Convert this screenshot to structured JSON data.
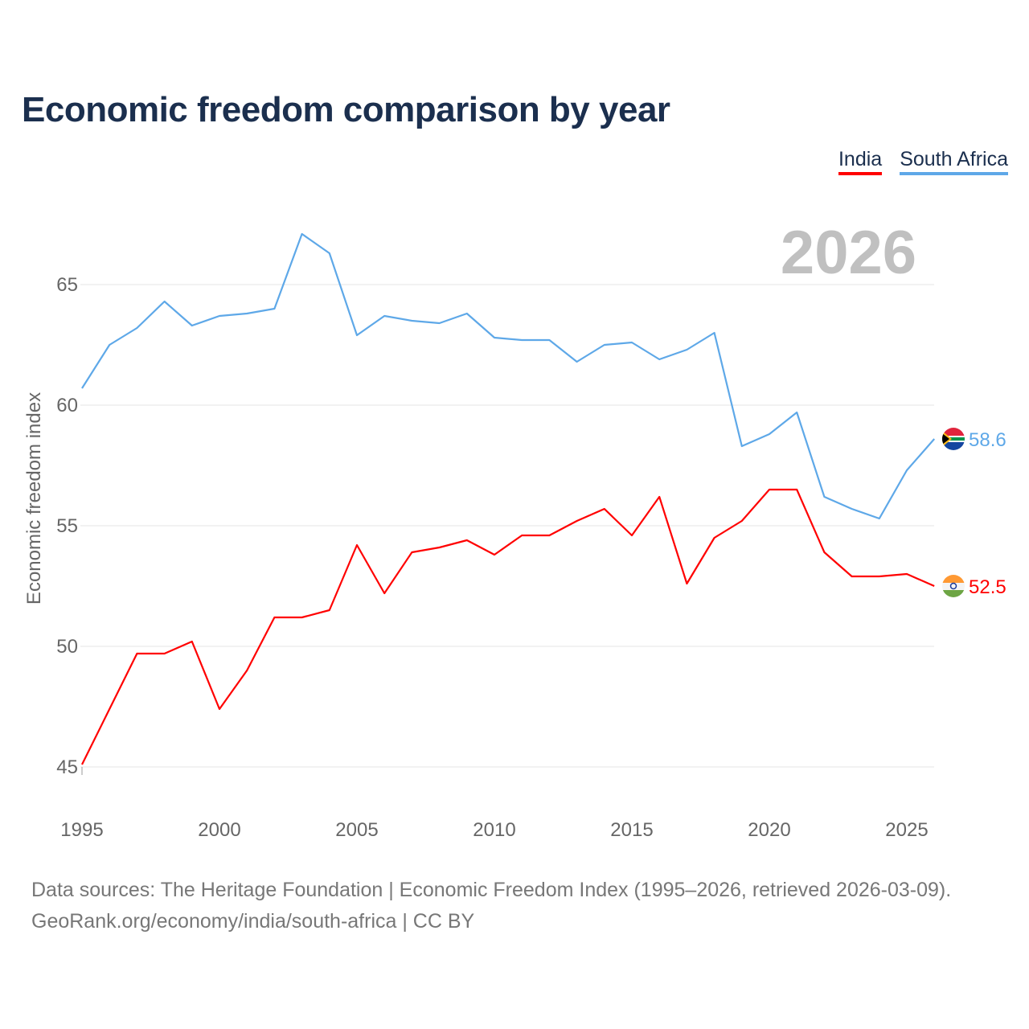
{
  "chart_data": {
    "type": "line",
    "title": "Economic freedom comparison by year",
    "ylabel": "Economic freedom index",
    "xlabel": "",
    "year_label": "2026",
    "ylim": [
      44.5,
      67.5
    ],
    "xlim": [
      1995,
      2026
    ],
    "yticks": [
      45,
      50,
      55,
      60,
      65
    ],
    "xticks": [
      1995,
      2000,
      2005,
      2010,
      2015,
      2020,
      2025
    ],
    "grid": true,
    "legend_position": "top-right",
    "x": [
      1995,
      1996,
      1997,
      1998,
      1999,
      2000,
      2001,
      2002,
      2003,
      2004,
      2005,
      2006,
      2007,
      2008,
      2009,
      2010,
      2011,
      2012,
      2013,
      2014,
      2015,
      2016,
      2017,
      2018,
      2019,
      2020,
      2021,
      2022,
      2023,
      2024,
      2025,
      2026
    ],
    "series": [
      {
        "name": "India",
        "color": "#ff0000",
        "end_label": "52.5",
        "values": [
          45.1,
          47.4,
          49.7,
          49.7,
          50.2,
          47.4,
          49.0,
          51.2,
          51.2,
          51.5,
          54.2,
          52.2,
          53.9,
          54.1,
          54.4,
          53.8,
          54.6,
          54.6,
          55.2,
          55.7,
          54.6,
          56.2,
          52.6,
          54.5,
          55.2,
          56.5,
          56.5,
          53.9,
          52.9,
          52.9,
          53.0,
          52.5
        ]
      },
      {
        "name": "South Africa",
        "color": "#5ea8e8",
        "end_label": "58.6",
        "values": [
          60.7,
          62.5,
          63.2,
          64.3,
          63.3,
          63.7,
          63.8,
          64.0,
          67.1,
          66.3,
          62.9,
          63.7,
          63.5,
          63.4,
          63.8,
          62.8,
          62.7,
          62.7,
          61.8,
          62.5,
          62.6,
          61.9,
          62.3,
          63.0,
          58.3,
          58.8,
          59.7,
          56.2,
          55.7,
          55.3,
          57.3,
          58.6
        ]
      }
    ]
  },
  "source": {
    "line1": "Data sources: The Heritage Foundation | Economic Freedom Index (1995–2026, retrieved 2026-03-09).",
    "line2": "GeoRank.org/economy/india/south-africa | CC BY"
  }
}
